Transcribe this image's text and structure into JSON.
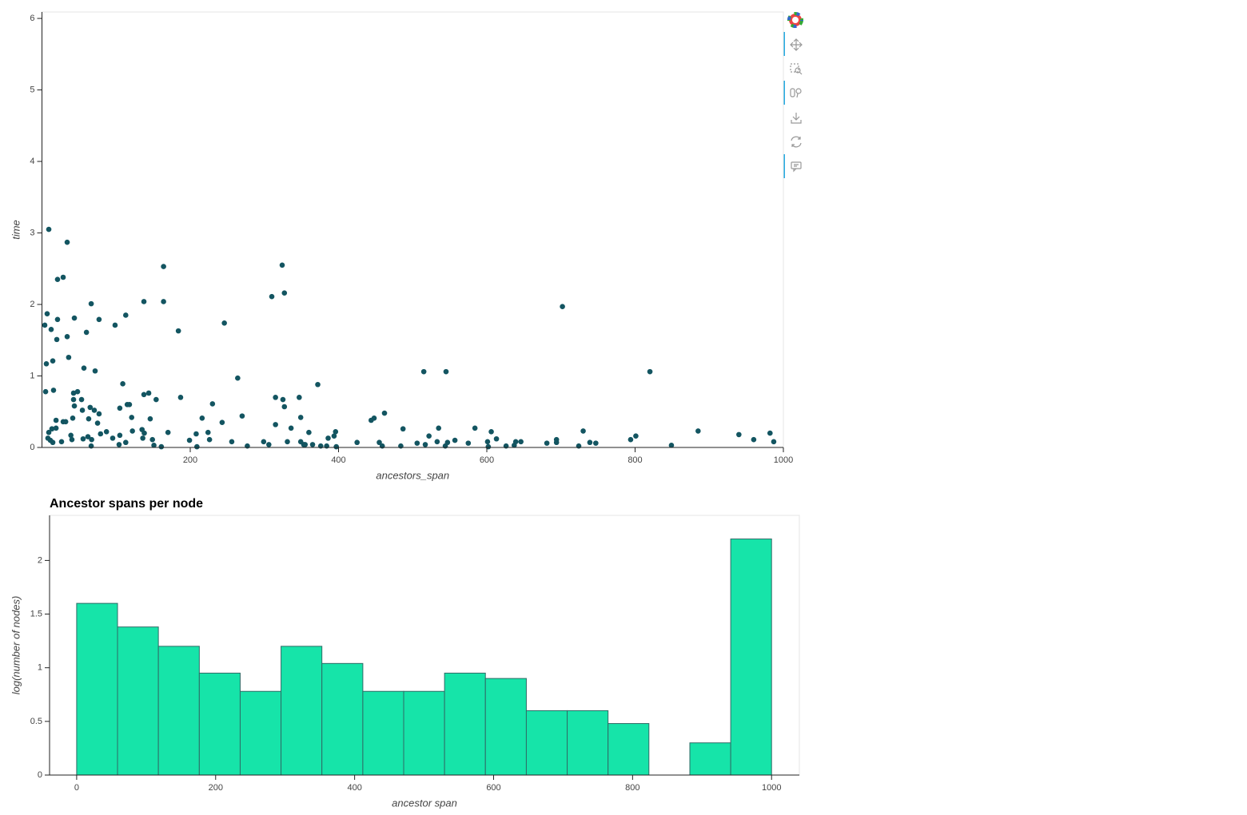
{
  "chart_data": [
    {
      "type": "scatter",
      "xlabel": "ancestors_span",
      "ylabel": "time",
      "color": "#135561",
      "xlim": [
        0,
        1000
      ],
      "xticks": [
        200,
        400,
        600,
        800,
        1000
      ],
      "ylim": [
        0,
        6.09
      ],
      "yticks": [
        0,
        1,
        2,
        3,
        4,
        5,
        6
      ],
      "x": [
        9.2,
        34,
        21,
        28.6,
        7,
        3.8,
        12.4,
        21,
        20,
        34,
        43.7,
        60,
        66.4,
        77,
        98.6,
        113,
        137.5,
        164,
        164,
        184,
        246,
        310,
        324,
        327,
        702,
        5.9,
        14.6,
        36,
        56.6,
        71.7,
        109,
        264,
        372,
        515,
        545,
        820,
        4.9,
        15.6,
        42.6,
        48,
        42.6,
        53.4,
        43.7,
        54.5,
        65,
        70.6,
        77,
        63,
        75,
        41.5,
        19,
        28.6,
        32,
        19,
        9.2,
        13.4,
        8,
        11.3,
        14.6,
        26.4,
        39,
        40.4,
        55.5,
        62,
        67,
        66.4,
        79,
        87,
        95.4,
        105,
        104,
        113,
        105,
        115,
        118,
        121,
        122,
        137.5,
        144,
        154,
        146,
        135,
        138,
        136,
        149,
        151,
        161,
        170,
        187,
        199,
        208,
        209,
        216,
        224,
        226,
        230,
        243,
        256,
        270,
        277,
        299,
        306,
        315,
        315,
        325,
        327,
        331,
        336,
        347,
        349,
        349,
        353,
        355,
        360,
        365,
        376,
        384,
        386,
        394,
        396,
        397,
        425,
        444,
        448,
        455,
        459,
        462,
        484,
        487,
        506,
        517,
        522,
        533,
        535,
        544,
        547,
        557,
        575,
        584,
        601,
        602,
        606,
        613,
        626,
        637,
        639,
        646,
        681,
        694,
        694,
        724,
        730,
        739,
        747,
        794,
        801,
        849,
        885,
        940,
        960,
        982,
        987
      ],
      "values": [
        3.05,
        2.87,
        2.35,
        2.38,
        1.87,
        1.71,
        1.65,
        1.79,
        1.51,
        1.55,
        1.81,
        1.61,
        2.01,
        1.79,
        1.71,
        1.85,
        2.04,
        2.53,
        2.04,
        1.63,
        1.74,
        2.11,
        2.55,
        2.16,
        1.97,
        1.17,
        1.21,
        1.26,
        1.11,
        1.07,
        0.89,
        0.97,
        0.88,
        1.06,
        1.06,
        1.06,
        0.78,
        0.8,
        0.76,
        0.78,
        0.67,
        0.67,
        0.58,
        0.52,
        0.56,
        0.52,
        0.47,
        0.4,
        0.34,
        0.41,
        0.38,
        0.36,
        0.36,
        0.27,
        0.21,
        0.26,
        0.13,
        0.1,
        0.07,
        0.08,
        0.17,
        0.11,
        0.12,
        0.15,
        0.11,
        0.02,
        0.19,
        0.22,
        0.13,
        0.17,
        0.04,
        0.07,
        0.55,
        0.6,
        0.6,
        0.42,
        0.23,
        0.74,
        0.76,
        0.67,
        0.4,
        0.25,
        0.2,
        0.13,
        0.11,
        0.03,
        0.01,
        0.21,
        0.7,
        0.1,
        0.19,
        0.01,
        0.41,
        0.21,
        0.11,
        0.61,
        0.35,
        0.08,
        0.44,
        0.02,
        0.08,
        0.04,
        0.7,
        0.32,
        0.67,
        0.57,
        0.08,
        0.27,
        0.7,
        0.42,
        0.08,
        0.04,
        0.04,
        0.21,
        0.04,
        0.02,
        0.02,
        0.13,
        0.16,
        0.22,
        0.01,
        0.07,
        0.38,
        0.41,
        0.07,
        0.02,
        0.48,
        0.02,
        0.26,
        0.06,
        0.04,
        0.16,
        0.08,
        0.27,
        0.02,
        0.07,
        0.1,
        0.06,
        0.27,
        0.08,
        0.01,
        0.22,
        0.12,
        0.02,
        0.03,
        0.08,
        0.08,
        0.06,
        0.11,
        0.07,
        0.02,
        0.23,
        0.07,
        0.06,
        0.11,
        0.16,
        0.03,
        0.23,
        0.18,
        0.11,
        0.2,
        0.08
      ]
    },
    {
      "type": "histogram",
      "title": "Ancestor spans per node",
      "xlabel": "ancestor span",
      "ylabel": "log(number of nodes)",
      "color": "#16e4a9",
      "edgecolor": "#2f6b66",
      "xlim": [
        -39,
        1040
      ],
      "xticks": [
        0,
        200,
        400,
        600,
        800,
        1000
      ],
      "ylim": [
        0,
        2.42
      ],
      "yticks": [
        0,
        0.5,
        1,
        1.5,
        2
      ],
      "bins": [
        0,
        58.8,
        117.6,
        176.5,
        235.3,
        294.1,
        352.9,
        411.8,
        470.6,
        529.4,
        588.2,
        647.1,
        705.9,
        764.7,
        823.5,
        882.4,
        941.2,
        1000
      ],
      "values": [
        1.6,
        1.38,
        1.2,
        0.95,
        0.78,
        1.2,
        1.04,
        0.78,
        0.78,
        0.95,
        0.9,
        0.6,
        0.6,
        0.48,
        0,
        0.3,
        2.2
      ]
    }
  ]
}
